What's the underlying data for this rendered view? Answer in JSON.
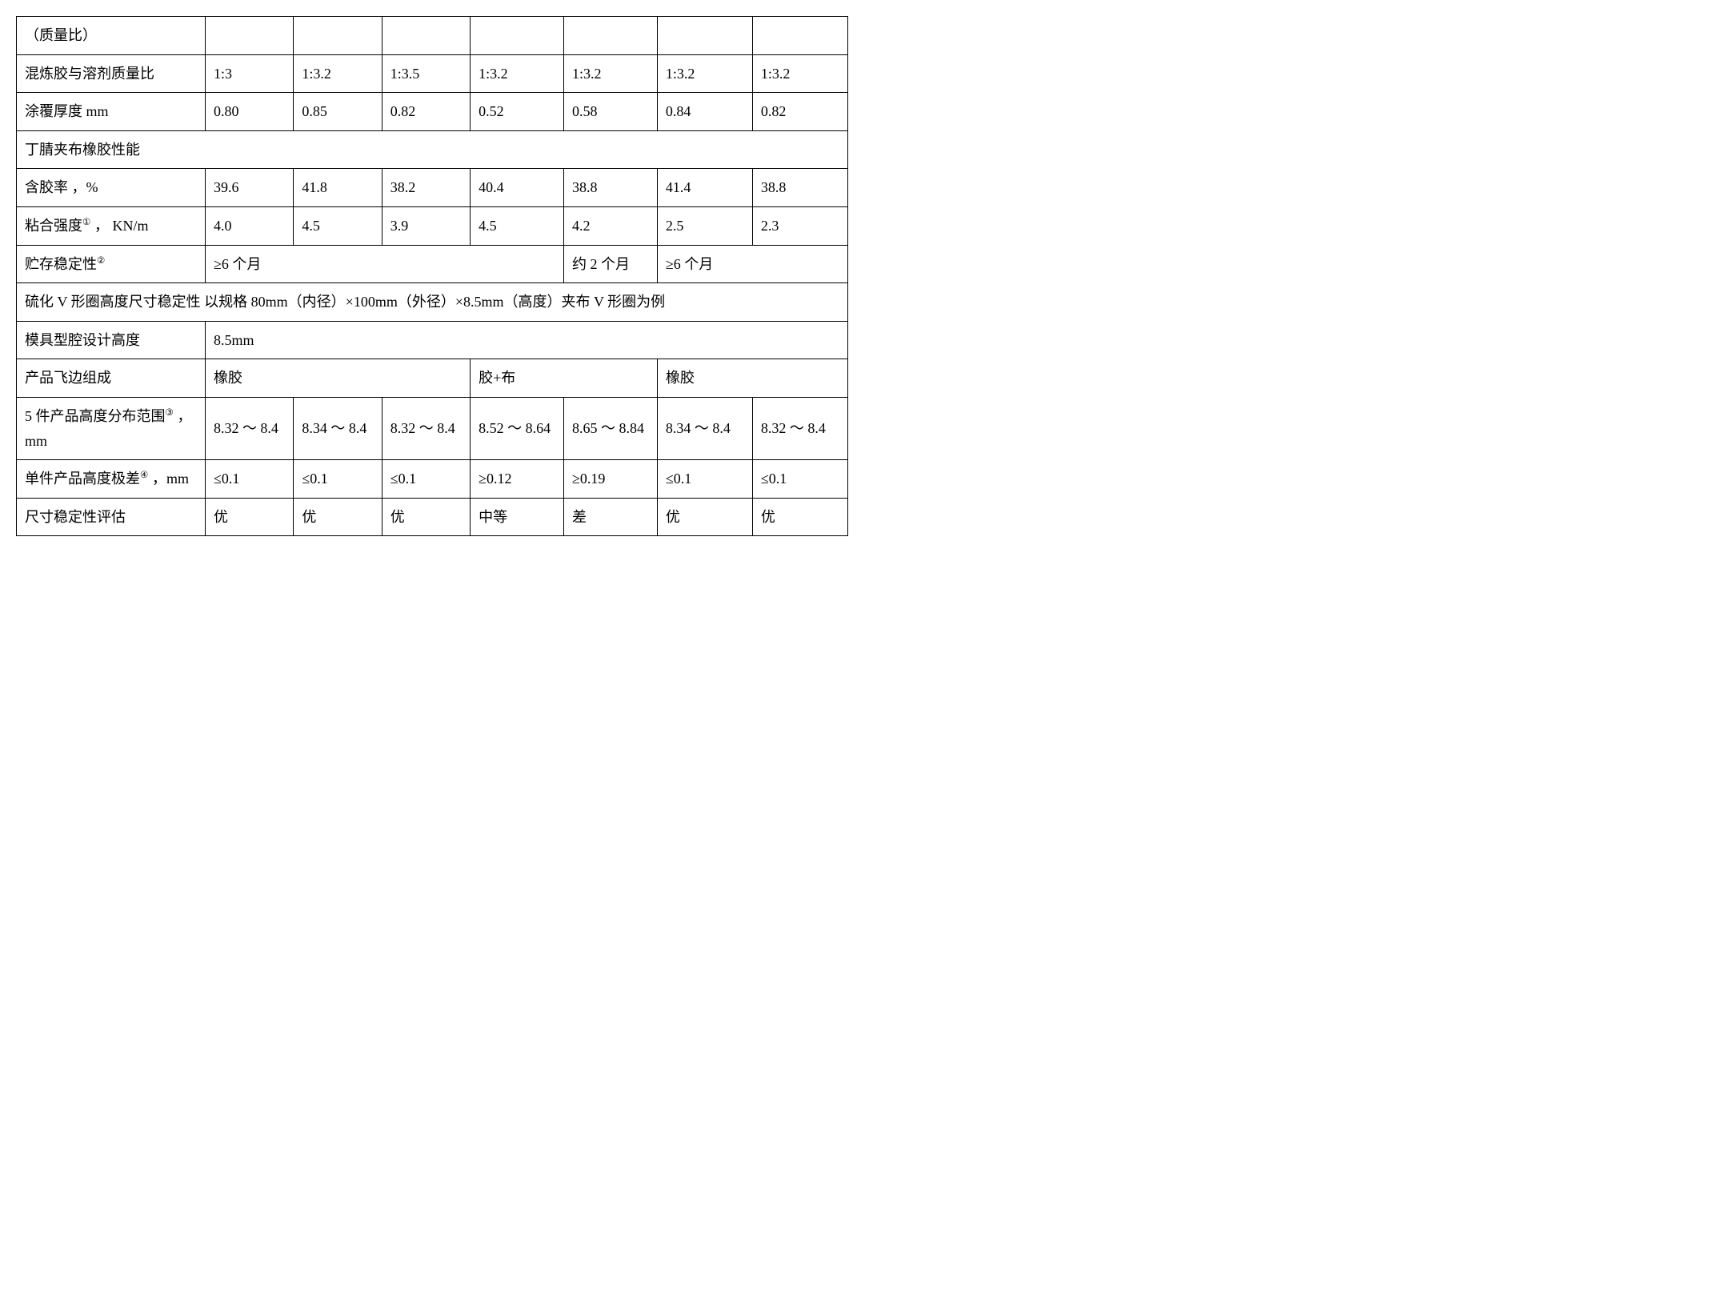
{
  "table": {
    "border_color": "#000000",
    "background": "#ffffff",
    "font_family": "SimSun",
    "base_fontsize": 18,
    "row0": {
      "label": "（质量比）"
    },
    "row1": {
      "label": "混炼胶与溶剂质量比",
      "c1": "1:3",
      "c2": "1:3.2",
      "c3": "1:3.5",
      "c4": "1:3.2",
      "c5": "1:3.2",
      "c6": "1:3.2",
      "c7": "1:3.2"
    },
    "row2": {
      "label": "涂覆厚度  mm",
      "c1": "0.80",
      "c2": "0.85",
      "c3": "0.82",
      "c4": "0.52",
      "c5": "0.58",
      "c6": "0.84",
      "c7": "0.82"
    },
    "row3": {
      "label": "丁腈夹布橡胶性能"
    },
    "row4": {
      "label": "含胶率 ，%",
      "c1": "39.6",
      "c2": "41.8",
      "c3": "38.2",
      "c4": "40.4",
      "c5": "38.8",
      "c6": "41.4",
      "c7": "38.8"
    },
    "row5": {
      "label_pre": "粘合强度",
      "label_sup": "①",
      "label_post": " ， KN/m",
      "c1": "4.0",
      "c2": "4.5",
      "c3": "3.9",
      "c4": "4.5",
      "c5": "4.2",
      "c6": "2.5",
      "c7": "2.3"
    },
    "row6": {
      "label_pre": "贮存稳定性",
      "label_sup": "②",
      "g1": "≥6 个月",
      "g2": "约 2 个月",
      "g3": "≥6 个月"
    },
    "row7": {
      "label": "硫化 V 形圈高度尺寸稳定性   以规格 80mm（内径）×100mm（外径）×8.5mm（高度）夹布 V 形圈为例"
    },
    "row8": {
      "label": "模具型腔设计高度",
      "val": "8.5mm"
    },
    "row9": {
      "label": "产品飞边组成",
      "g1": "橡胶",
      "g2": "胶+布",
      "g3": "橡胶"
    },
    "row10": {
      "label_pre": "5 件产品高度分布范围",
      "label_sup": "③",
      "label_post": " ，mm",
      "c1": "8.32 ～ 8.4",
      "c2": "8.34 ～ 8.4",
      "c3": "8.32 ～ 8.4",
      "c4": "8.52 ～ 8.64",
      "c5": "8.65 ～ 8.84",
      "c6": "8.34 ～ 8.4",
      "c7": "8.32 ～ 8.4"
    },
    "row11": {
      "label_pre": "单件产品高度极差",
      "label_sup": "④",
      "label_post": " ，mm",
      "c1": "≤0.1",
      "c2": "≤0.1",
      "c3": "≤0.1",
      "c4": "≥0.12",
      "c5": "≥0.19",
      "c6": "≤0.1",
      "c7": "≤0.1"
    },
    "row12": {
      "label": "尺寸稳定性评估",
      "c1": "优",
      "c2": "优",
      "c3": "优",
      "c4": "中等",
      "c5": "差",
      "c6": "优",
      "c7": "优"
    }
  }
}
